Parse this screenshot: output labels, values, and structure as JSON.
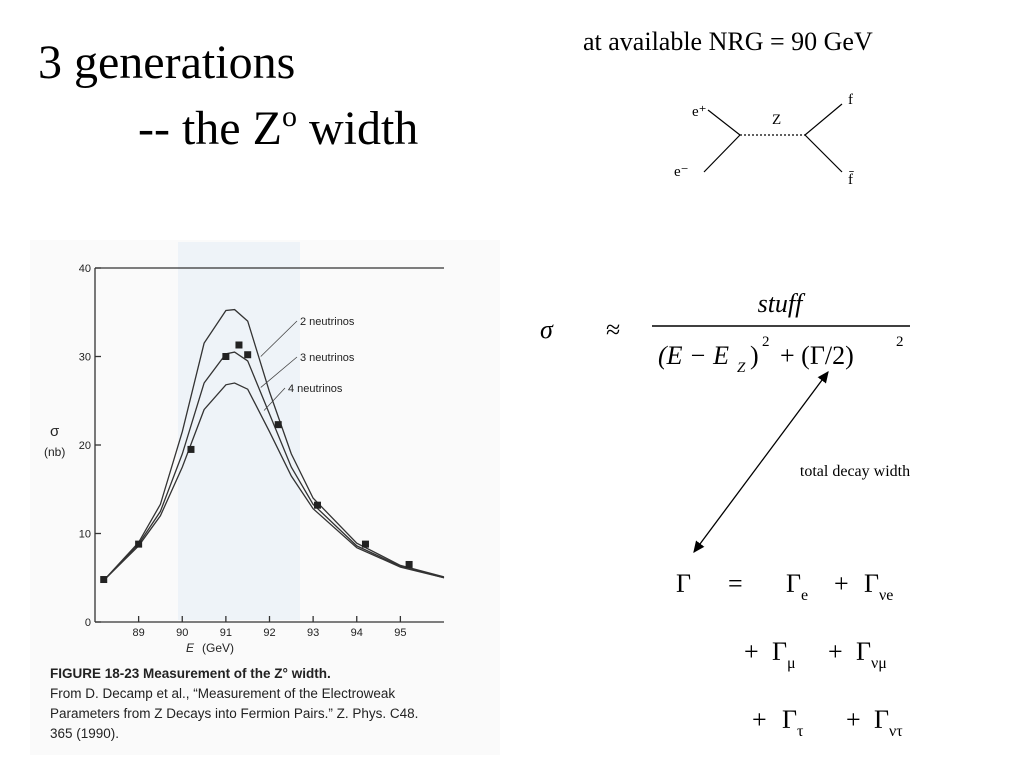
{
  "title": "3 generations",
  "subtitle": {
    "text": "-- the Z",
    "sup": "o",
    "tail": " width"
  },
  "note": "at available NRG = 90 GeV",
  "diagram": {
    "in_top": "e⁺",
    "in_bottom": "e⁻",
    "boson": "Z",
    "out_top": "f",
    "out_bottom": "f̄"
  },
  "chart_data": {
    "type": "line",
    "x": [
      88.2,
      89,
      89.5,
      90,
      90.5,
      91,
      91.2,
      91.5,
      92,
      92.5,
      93,
      94,
      95,
      96
    ],
    "series": [
      {
        "name": "2 neutrinos",
        "color": "#333333",
        "values": [
          4.7,
          9,
          13.3,
          21.5,
          31.5,
          35.2,
          35.3,
          34,
          26,
          19,
          14,
          8.9,
          6.4,
          5.1
        ]
      },
      {
        "name": "3 neutrinos",
        "color": "#333333",
        "values": [
          4.7,
          8.8,
          12.5,
          19,
          27,
          30.3,
          30.5,
          29.5,
          23.5,
          17.5,
          13.3,
          8.6,
          6.3,
          5
        ]
      },
      {
        "name": "4 neutrinos",
        "color": "#333333",
        "values": [
          4.7,
          8.6,
          12,
          17.5,
          24,
          26.8,
          27,
          26.3,
          21.5,
          16.5,
          12.8,
          8.4,
          6.2,
          5
        ]
      }
    ],
    "points": {
      "color": "#222222",
      "x": [
        88.2,
        89,
        90.2,
        91,
        91.3,
        91.5,
        92.2,
        93.1,
        94.2,
        95.2
      ],
      "values": [
        4.8,
        8.8,
        19.5,
        30,
        31.3,
        30.2,
        22.3,
        13.2,
        8.8,
        6.5
      ]
    },
    "xlim": [
      88,
      96
    ],
    "ylim": [
      0,
      40
    ],
    "xticks": [
      89,
      90,
      91,
      92,
      93,
      94,
      95
    ],
    "yticks": [
      0,
      10,
      20,
      30,
      40
    ],
    "xlabel": "E",
    "xunit": "(GeV)",
    "ylabel": "σ",
    "yunit": "(nb)",
    "caption": [
      "FIGURE 18-23  Measurement of the Z° width.",
      "From D. Decamp et al., “Measurement of the Electroweak",
      "Parameters from Z Decays into Fermion Pairs.” Z. Phys. C48.",
      "365 (1990)."
    ]
  },
  "formula": {
    "lhs": "σ",
    "relation": "≈",
    "numerator": "stuff",
    "den_a": "(E − E",
    "den_sub": "Z",
    "den_b": ")",
    "den_exp1": "2",
    "den_c": "+ (Γ/2)",
    "den_exp2": "2"
  },
  "annotation": "total decay width",
  "decay": {
    "lhs": "Γ",
    "eq": "=",
    "plus": "+",
    "symbol": "Γ",
    "subs": [
      "e",
      "νe",
      "μ",
      "νμ",
      "τ",
      "ντ"
    ]
  }
}
